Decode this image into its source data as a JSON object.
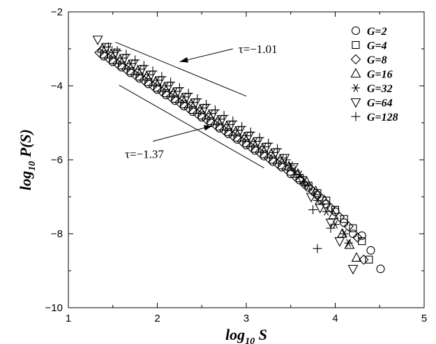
{
  "chart_data": {
    "type": "scatter",
    "xlim": [
      1,
      5
    ],
    "ylim": [
      -10,
      -2
    ],
    "xticks": [
      1,
      2,
      3,
      4,
      5
    ],
    "yticks": [
      -10,
      -8,
      -6,
      -4,
      -2
    ],
    "xlabel_main": "log",
    "xlabel_sub": "10",
    "xlabel_tail": " S",
    "ylabel_main": "log",
    "ylabel_sub": "10",
    "ylabel_tail": " P(S)",
    "grid": false,
    "legend_position": "top-right",
    "series": [
      {
        "name": "G=2",
        "marker": "circle",
        "x": [
          1.4,
          1.5,
          1.6,
          1.7,
          1.8,
          1.9,
          2.0,
          2.1,
          2.2,
          2.3,
          2.4,
          2.5,
          2.6,
          2.7,
          2.8,
          2.9,
          3.0,
          3.1,
          3.2,
          3.3,
          3.4,
          3.5,
          3.6,
          3.7,
          3.8,
          3.9,
          4.0,
          4.1,
          4.2,
          4.3,
          4.4,
          4.51
        ],
        "y": [
          -3.2,
          -3.35,
          -3.5,
          -3.65,
          -3.8,
          -3.95,
          -4.1,
          -4.25,
          -4.4,
          -4.55,
          -4.7,
          -4.85,
          -5.0,
          -5.15,
          -5.3,
          -5.45,
          -5.6,
          -5.75,
          -5.9,
          -6.05,
          -6.2,
          -6.38,
          -6.55,
          -6.75,
          -6.95,
          -7.2,
          -7.4,
          -7.7,
          -8.0,
          -8.05,
          -8.45,
          -8.95
        ]
      },
      {
        "name": "G=4",
        "marker": "square",
        "x": [
          1.4,
          1.5,
          1.6,
          1.7,
          1.8,
          1.9,
          2.0,
          2.1,
          2.2,
          2.3,
          2.4,
          2.5,
          2.6,
          2.7,
          2.8,
          2.9,
          3.0,
          3.1,
          3.2,
          3.3,
          3.4,
          3.5,
          3.6,
          3.7,
          3.8,
          3.9,
          4.0,
          4.1,
          4.2,
          4.3,
          4.38
        ],
        "y": [
          -3.15,
          -3.3,
          -3.45,
          -3.6,
          -3.75,
          -3.9,
          -4.05,
          -4.2,
          -4.35,
          -4.5,
          -4.65,
          -4.8,
          -4.95,
          -5.1,
          -5.25,
          -5.4,
          -5.55,
          -5.7,
          -5.85,
          -6.0,
          -6.15,
          -6.32,
          -6.5,
          -6.7,
          -6.9,
          -7.1,
          -7.35,
          -7.6,
          -7.85,
          -8.2,
          -8.7
        ]
      },
      {
        "name": "G=8",
        "marker": "diamond",
        "x": [
          1.35,
          1.45,
          1.55,
          1.65,
          1.75,
          1.85,
          1.95,
          2.05,
          2.15,
          2.25,
          2.35,
          2.45,
          2.55,
          2.65,
          2.75,
          2.85,
          2.95,
          3.05,
          3.15,
          3.25,
          3.35,
          3.45,
          3.55,
          3.65,
          3.75,
          3.85,
          3.95,
          4.05,
          4.15,
          4.25,
          4.32
        ],
        "y": [
          -3.1,
          -3.25,
          -3.4,
          -3.55,
          -3.7,
          -3.85,
          -4.0,
          -4.15,
          -4.3,
          -4.45,
          -4.6,
          -4.75,
          -4.9,
          -5.05,
          -5.2,
          -5.35,
          -5.5,
          -5.65,
          -5.8,
          -5.95,
          -6.1,
          -6.25,
          -6.45,
          -6.65,
          -6.85,
          -7.05,
          -7.3,
          -7.55,
          -7.8,
          -8.1,
          -8.7
        ]
      },
      {
        "name": "G=16",
        "marker": "triangle-up",
        "x": [
          1.38,
          1.48,
          1.58,
          1.68,
          1.78,
          1.88,
          1.98,
          2.08,
          2.18,
          2.28,
          2.38,
          2.48,
          2.58,
          2.68,
          2.78,
          2.88,
          2.98,
          3.08,
          3.18,
          3.28,
          3.38,
          3.48,
          3.58,
          3.68,
          3.78,
          3.88,
          3.98,
          4.08,
          4.16,
          4.24
        ],
        "y": [
          -3.0,
          -3.15,
          -3.3,
          -3.45,
          -3.6,
          -3.75,
          -3.9,
          -4.05,
          -4.2,
          -4.35,
          -4.5,
          -4.65,
          -4.8,
          -4.95,
          -5.1,
          -5.25,
          -5.4,
          -5.55,
          -5.7,
          -5.85,
          -6.0,
          -6.18,
          -6.38,
          -6.6,
          -6.85,
          -7.1,
          -7.5,
          -8.0,
          -8.3,
          -8.65
        ]
      },
      {
        "name": "G=32",
        "marker": "asterisk",
        "x": [
          1.4,
          1.5,
          1.6,
          1.7,
          1.8,
          1.9,
          2.0,
          2.1,
          2.2,
          2.3,
          2.4,
          2.5,
          2.6,
          2.7,
          2.8,
          2.9,
          3.0,
          3.1,
          3.2,
          3.3,
          3.4,
          3.5,
          3.6,
          3.7,
          3.8,
          3.9,
          4.0,
          4.1,
          4.15
        ],
        "y": [
          -2.95,
          -3.1,
          -3.25,
          -3.4,
          -3.55,
          -3.7,
          -3.85,
          -4.0,
          -4.15,
          -4.3,
          -4.45,
          -4.6,
          -4.75,
          -4.9,
          -5.05,
          -5.2,
          -5.35,
          -5.5,
          -5.65,
          -5.8,
          -5.95,
          -6.15,
          -6.4,
          -6.7,
          -7.1,
          -7.4,
          -7.75,
          -8.0,
          -8.25
        ]
      },
      {
        "name": "G=64",
        "marker": "triangle-down",
        "x": [
          1.33,
          1.43,
          1.53,
          1.63,
          1.73,
          1.83,
          1.93,
          2.03,
          2.13,
          2.23,
          2.33,
          2.43,
          2.53,
          2.63,
          2.73,
          2.83,
          2.93,
          3.03,
          3.13,
          3.23,
          3.33,
          3.43,
          3.53,
          3.63,
          3.73,
          3.83,
          3.95,
          4.05,
          4.2
        ],
        "y": [
          -2.75,
          -2.95,
          -3.1,
          -3.25,
          -3.4,
          -3.55,
          -3.7,
          -3.85,
          -4.0,
          -4.15,
          -4.3,
          -4.45,
          -4.6,
          -4.75,
          -4.9,
          -5.05,
          -5.2,
          -5.35,
          -5.5,
          -5.65,
          -5.8,
          -5.95,
          -6.2,
          -6.55,
          -7.0,
          -7.3,
          -7.7,
          -8.2,
          -8.95
        ]
      },
      {
        "name": "G=128",
        "marker": "plus",
        "x": [
          1.45,
          1.55,
          1.65,
          1.75,
          1.85,
          1.95,
          2.05,
          2.15,
          2.25,
          2.35,
          2.45,
          2.55,
          2.65,
          2.75,
          2.85,
          2.95,
          3.05,
          3.15,
          3.25,
          3.35,
          3.45,
          3.55,
          3.65,
          3.75,
          3.8,
          3.95
        ],
        "y": [
          -2.95,
          -3.05,
          -3.15,
          -3.3,
          -3.45,
          -3.6,
          -3.75,
          -3.9,
          -4.05,
          -4.2,
          -4.35,
          -4.5,
          -4.65,
          -4.8,
          -4.95,
          -5.1,
          -5.25,
          -5.4,
          -5.55,
          -5.7,
          -6.0,
          -6.3,
          -6.6,
          -7.35,
          -8.4,
          -7.85
        ]
      }
    ],
    "reference_lines": [
      {
        "label": "τ=−1.01",
        "x": [
          1.53,
          3.0
        ],
        "y": [
          -2.82,
          -4.28
        ]
      },
      {
        "label": "τ=−1.37",
        "x": [
          1.57,
          3.2
        ],
        "y": [
          -3.98,
          -6.22
        ]
      }
    ],
    "annotations": [
      {
        "text": "τ=−1.01",
        "arrow_from": [
          2.85,
          -3.0
        ],
        "arrow_to": [
          2.25,
          -3.35
        ]
      },
      {
        "text": "τ=−1.37",
        "arrow_from": [
          1.95,
          -5.5
        ],
        "arrow_to": [
          2.62,
          -5.08
        ]
      }
    ]
  }
}
